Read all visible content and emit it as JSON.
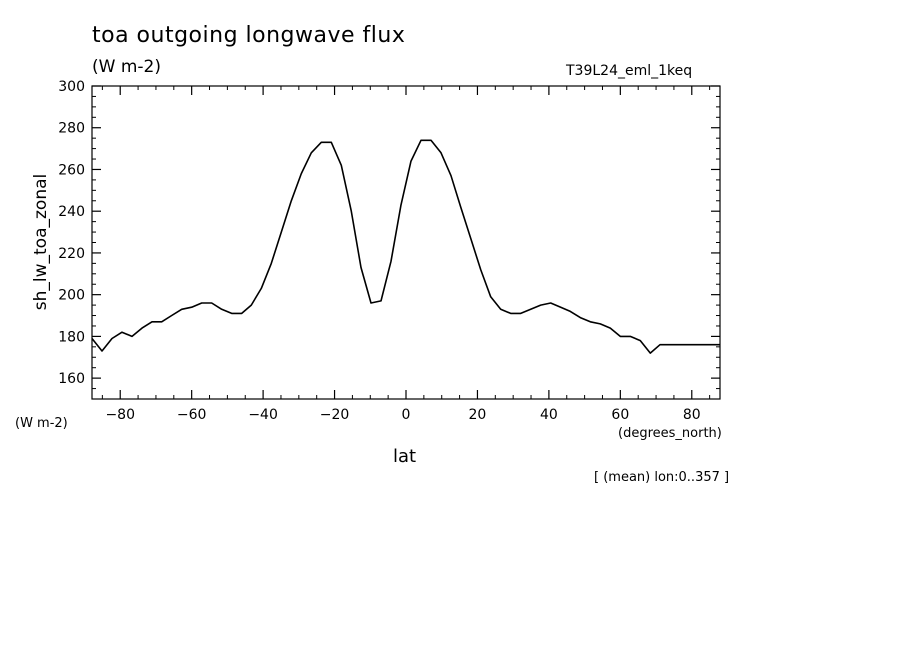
{
  "chart_data": {
    "type": "line",
    "title": "toa outgoing longwave flux",
    "units": "(W m-2)",
    "run_id": "T39L24_eml_1keq",
    "ylabel": "sh_lw_toa_zonal",
    "yunits": "(W m-2)",
    "xlabel": "lat",
    "xunits": "(degrees_north)",
    "note": "[ (mean) lon:0..357 ]",
    "xlim": [
      -87.9,
      87.9
    ],
    "ylim": [
      150,
      300
    ],
    "xticks": [
      -80,
      -60,
      -40,
      -20,
      0,
      20,
      40,
      60,
      80
    ],
    "yticks": [
      160,
      180,
      200,
      220,
      240,
      260,
      280,
      300
    ],
    "grid": false,
    "legend": "none",
    "line_color": "#000000",
    "series": [
      {
        "x": [
          -87.9,
          -85.1,
          -82.3,
          -79.5,
          -76.7,
          -73.9,
          -71.1,
          -68.4,
          -65.6,
          -62.8,
          -60.0,
          -57.2,
          -54.4,
          -51.6,
          -48.8,
          -46.0,
          -43.3,
          -40.5,
          -37.7,
          -34.9,
          -32.1,
          -29.3,
          -26.5,
          -23.7,
          -20.9,
          -18.1,
          -15.3,
          -12.6,
          -9.8,
          -7.0,
          -4.2,
          -1.4,
          1.4,
          4.2,
          7.0,
          9.8,
          12.6,
          15.3,
          18.1,
          20.9,
          23.7,
          26.5,
          29.3,
          32.1,
          34.9,
          37.7,
          40.5,
          43.3,
          46.0,
          48.8,
          51.6,
          54.4,
          57.2,
          60.0,
          62.8,
          65.6,
          68.4,
          71.1,
          73.9,
          76.7,
          79.5,
          82.3,
          85.1,
          87.9
        ],
        "values": [
          179,
          173,
          179,
          182,
          180,
          184,
          187,
          187,
          190,
          193,
          194,
          196,
          196,
          193,
          191,
          191,
          195,
          203,
          215,
          230,
          245,
          258,
          268,
          273,
          273,
          262,
          240,
          213,
          196,
          197,
          216,
          243,
          264,
          274,
          274,
          268,
          257,
          242,
          227,
          212,
          199,
          193,
          191,
          191,
          193,
          195,
          196,
          194,
          192,
          189,
          187,
          186,
          184,
          180,
          180,
          178,
          172,
          176,
          176,
          176,
          176,
          176,
          176,
          176
        ]
      }
    ]
  }
}
